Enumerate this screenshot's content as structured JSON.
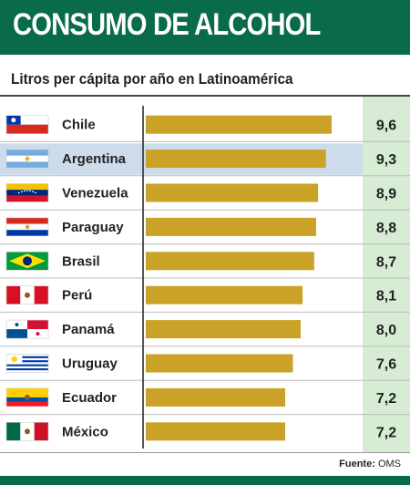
{
  "header": {
    "title": "CONSUMO DE ALCOHOL"
  },
  "colors": {
    "header": "#0a6b4a",
    "bar": "#c9a227",
    "value_column": "#d6ecd3",
    "highlight_row": "#cddcea",
    "row_divider": "#bdbdbd"
  },
  "chart_data": {
    "type": "bar",
    "orientation": "horizontal",
    "title": "",
    "subtitle": "Litros per cápita por año en Latinoamérica",
    "categories": [
      "Chile",
      "Argentina",
      "Venezuela",
      "Paraguay",
      "Brasil",
      "Perú",
      "Panamá",
      "Uruguay",
      "Ecuador",
      "México"
    ],
    "values": [
      9.6,
      9.3,
      8.9,
      8.8,
      8.7,
      8.1,
      8.0,
      7.6,
      7.2,
      7.2
    ],
    "value_labels": [
      "9,6",
      "9,3",
      "8,9",
      "8,8",
      "8,7",
      "8,1",
      "8,0",
      "7,6",
      "7,2",
      "7,2"
    ],
    "flags": [
      "chile-flag-icon",
      "argentina-flag-icon",
      "venezuela-flag-icon",
      "paraguay-flag-icon",
      "brasil-flag-icon",
      "peru-flag-icon",
      "panama-flag-icon",
      "uruguay-flag-icon",
      "ecuador-flag-icon",
      "mexico-flag-icon"
    ],
    "highlighted_category": "Argentina",
    "grid": false,
    "legend": "none"
  },
  "footer": {
    "source_label": "Fuente:",
    "source_value": "OMS"
  }
}
